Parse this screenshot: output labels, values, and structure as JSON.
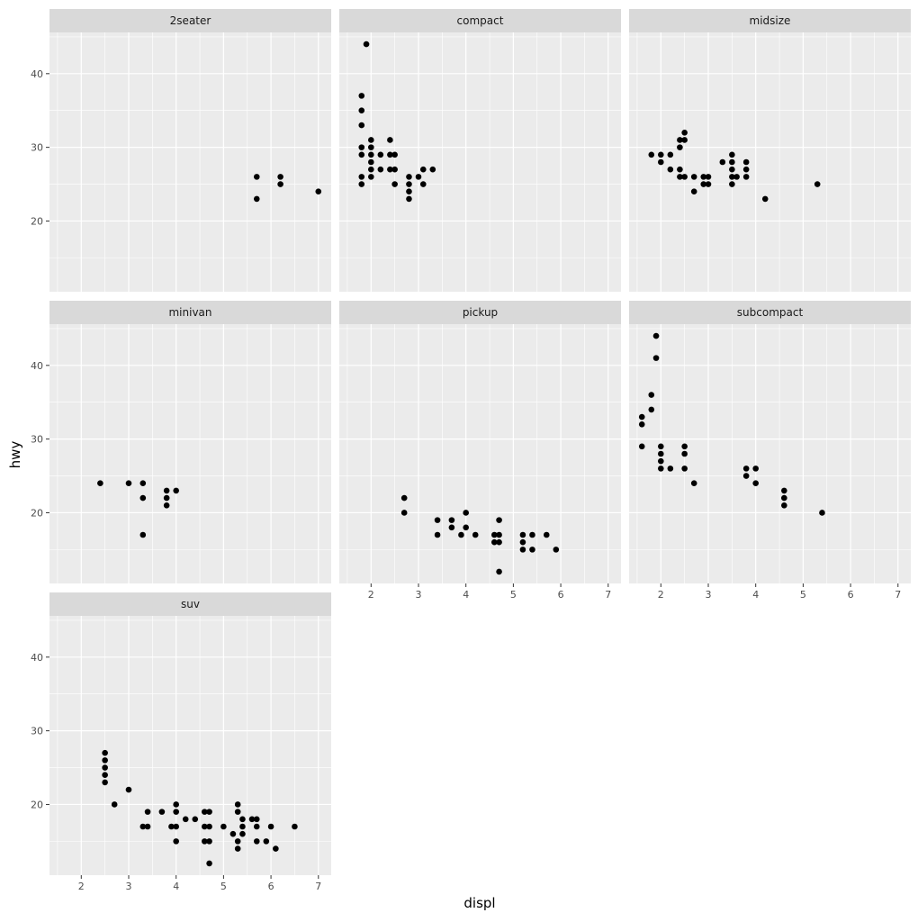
{
  "chart_data": {
    "type": "scatter",
    "xlabel": "displ",
    "ylabel": "hwy",
    "xlim": [
      1.33,
      7.27
    ],
    "ylim": [
      10.4,
      45.6
    ],
    "x_ticks": [
      2,
      3,
      4,
      5,
      6,
      7
    ],
    "y_ticks": [
      20,
      30,
      40
    ],
    "grid": true,
    "colors": {
      "panel_background": "#ebebeb",
      "strip_background": "#d9d9d9",
      "grid_line": "#ffffff",
      "point": "#000000",
      "tick_text": "#4d4d4d",
      "strip_text": "#1a1a1a"
    },
    "facets": [
      {
        "label": "2seater",
        "points": [
          [
            5.7,
            26
          ],
          [
            5.7,
            23
          ],
          [
            6.2,
            26
          ],
          [
            6.2,
            25
          ],
          [
            7.0,
            24
          ]
        ]
      },
      {
        "label": "compact",
        "points": [
          [
            1.8,
            25
          ],
          [
            1.8,
            26
          ],
          [
            1.8,
            29
          ],
          [
            1.8,
            30
          ],
          [
            1.8,
            33
          ],
          [
            1.8,
            35
          ],
          [
            1.8,
            37
          ],
          [
            1.9,
            44
          ],
          [
            2.0,
            26
          ],
          [
            2.0,
            27
          ],
          [
            2.0,
            28
          ],
          [
            2.0,
            29
          ],
          [
            2.0,
            30
          ],
          [
            2.0,
            31
          ],
          [
            2.2,
            27
          ],
          [
            2.2,
            29
          ],
          [
            2.4,
            27
          ],
          [
            2.4,
            29
          ],
          [
            2.4,
            31
          ],
          [
            2.5,
            25
          ],
          [
            2.5,
            27
          ],
          [
            2.5,
            29
          ],
          [
            2.8,
            23
          ],
          [
            2.8,
            24
          ],
          [
            2.8,
            25
          ],
          [
            2.8,
            26
          ],
          [
            3.0,
            26
          ],
          [
            3.1,
            25
          ],
          [
            3.1,
            27
          ],
          [
            3.3,
            27
          ]
        ]
      },
      {
        "label": "midsize",
        "points": [
          [
            1.8,
            29
          ],
          [
            2.0,
            28
          ],
          [
            2.0,
            29
          ],
          [
            2.2,
            27
          ],
          [
            2.2,
            29
          ],
          [
            2.4,
            26
          ],
          [
            2.4,
            27
          ],
          [
            2.4,
            30
          ],
          [
            2.4,
            31
          ],
          [
            2.5,
            26
          ],
          [
            2.5,
            31
          ],
          [
            2.5,
            32
          ],
          [
            2.7,
            24
          ],
          [
            2.7,
            26
          ],
          [
            2.9,
            25
          ],
          [
            2.9,
            26
          ],
          [
            3.0,
            25
          ],
          [
            3.0,
            26
          ],
          [
            3.3,
            28
          ],
          [
            3.5,
            25
          ],
          [
            3.5,
            26
          ],
          [
            3.5,
            27
          ],
          [
            3.5,
            28
          ],
          [
            3.5,
            29
          ],
          [
            3.6,
            26
          ],
          [
            3.8,
            26
          ],
          [
            3.8,
            27
          ],
          [
            3.8,
            28
          ],
          [
            4.2,
            23
          ],
          [
            5.3,
            25
          ]
        ]
      },
      {
        "label": "minivan",
        "points": [
          [
            2.4,
            24
          ],
          [
            3.0,
            24
          ],
          [
            3.3,
            24
          ],
          [
            3.3,
            22
          ],
          [
            3.3,
            17
          ],
          [
            3.8,
            23
          ],
          [
            3.8,
            22
          ],
          [
            3.8,
            21
          ],
          [
            4.0,
            23
          ]
        ]
      },
      {
        "label": "pickup",
        "points": [
          [
            2.7,
            22
          ],
          [
            2.7,
            20
          ],
          [
            3.4,
            19
          ],
          [
            3.4,
            17
          ],
          [
            3.7,
            19
          ],
          [
            3.7,
            18
          ],
          [
            3.9,
            17
          ],
          [
            4.0,
            20
          ],
          [
            4.0,
            18
          ],
          [
            4.2,
            17
          ],
          [
            4.6,
            17
          ],
          [
            4.6,
            16
          ],
          [
            4.7,
            19
          ],
          [
            4.7,
            17
          ],
          [
            4.7,
            16
          ],
          [
            4.7,
            12
          ],
          [
            5.2,
            17
          ],
          [
            5.2,
            16
          ],
          [
            5.2,
            15
          ],
          [
            5.4,
            17
          ],
          [
            5.4,
            15
          ],
          [
            5.7,
            17
          ],
          [
            5.9,
            15
          ]
        ]
      },
      {
        "label": "subcompact",
        "points": [
          [
            1.6,
            33
          ],
          [
            1.6,
            32
          ],
          [
            1.6,
            29
          ],
          [
            1.8,
            36
          ],
          [
            1.8,
            34
          ],
          [
            1.9,
            44
          ],
          [
            1.9,
            41
          ],
          [
            2.0,
            29
          ],
          [
            2.0,
            28
          ],
          [
            2.0,
            27
          ],
          [
            2.0,
            26
          ],
          [
            2.2,
            26
          ],
          [
            2.5,
            29
          ],
          [
            2.5,
            28
          ],
          [
            2.5,
            26
          ],
          [
            2.7,
            24
          ],
          [
            3.8,
            26
          ],
          [
            3.8,
            25
          ],
          [
            4.0,
            26
          ],
          [
            4.0,
            24
          ],
          [
            4.6,
            23
          ],
          [
            4.6,
            22
          ],
          [
            4.6,
            21
          ],
          [
            5.4,
            20
          ]
        ]
      },
      {
        "label": "suv",
        "points": [
          [
            2.5,
            27
          ],
          [
            2.5,
            26
          ],
          [
            2.5,
            25
          ],
          [
            2.5,
            24
          ],
          [
            2.5,
            23
          ],
          [
            2.7,
            20
          ],
          [
            3.0,
            22
          ],
          [
            3.3,
            17
          ],
          [
            3.4,
            19
          ],
          [
            3.4,
            17
          ],
          [
            3.7,
            19
          ],
          [
            3.9,
            17
          ],
          [
            4.0,
            20
          ],
          [
            4.0,
            19
          ],
          [
            4.0,
            17
          ],
          [
            4.0,
            15
          ],
          [
            4.2,
            18
          ],
          [
            4.4,
            18
          ],
          [
            4.6,
            19
          ],
          [
            4.6,
            17
          ],
          [
            4.6,
            15
          ],
          [
            4.7,
            19
          ],
          [
            4.7,
            17
          ],
          [
            4.7,
            15
          ],
          [
            4.7,
            12
          ],
          [
            5.0,
            17
          ],
          [
            5.2,
            16
          ],
          [
            5.3,
            20
          ],
          [
            5.3,
            19
          ],
          [
            5.3,
            15
          ],
          [
            5.3,
            14
          ],
          [
            5.4,
            18
          ],
          [
            5.4,
            17
          ],
          [
            5.4,
            16
          ],
          [
            5.6,
            18
          ],
          [
            5.7,
            18
          ],
          [
            5.7,
            17
          ],
          [
            5.7,
            15
          ],
          [
            5.9,
            15
          ],
          [
            6.0,
            17
          ],
          [
            6.1,
            14
          ],
          [
            6.5,
            17
          ]
        ]
      }
    ]
  }
}
